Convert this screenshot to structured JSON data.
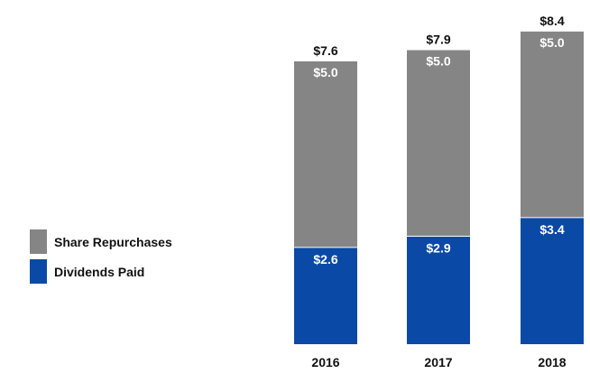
{
  "chart_data": {
    "type": "bar",
    "stacked": true,
    "categories": [
      "2016",
      "2017",
      "2018"
    ],
    "series": [
      {
        "name": "Dividends Paid",
        "values": [
          2.6,
          2.9,
          3.4
        ],
        "labels": [
          "$2.6",
          "$2.9",
          "$3.4"
        ],
        "color": "#0a4aa6"
      },
      {
        "name": "Share Repurchases",
        "values": [
          5.0,
          5.0,
          5.0
        ],
        "labels": [
          "$5.0",
          "$5.0",
          "$5.0"
        ],
        "color": "#858585"
      }
    ],
    "totals": [
      7.6,
      7.9,
      8.4
    ],
    "total_labels": [
      "$7.6",
      "$7.9",
      "$8.4"
    ],
    "legend": {
      "position": "left",
      "items": [
        "Share Repurchases",
        "Dividends Paid"
      ]
    },
    "title": "",
    "xlabel": "",
    "ylabel": "",
    "ylim": [
      0,
      8.4
    ],
    "grid": false
  }
}
